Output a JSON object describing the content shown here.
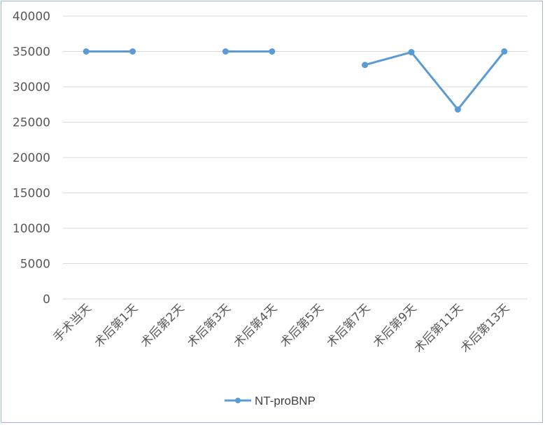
{
  "chart_data": {
    "type": "line",
    "categories": [
      "手术当天",
      "术后第1天",
      "术后第2天",
      "术后第3天",
      "术后第4天",
      "术后第5天",
      "术后第7天",
      "术后第9天",
      "术后第11天",
      "术后第13天"
    ],
    "series": [
      {
        "name": "NT-proBNP",
        "values": [
          35000,
          35000,
          null,
          35000,
          35000,
          null,
          33100,
          34900,
          26800,
          35000
        ],
        "color": "#5b9bd5"
      }
    ],
    "ylim": [
      0,
      40000
    ],
    "yticks": [
      "0",
      "5000",
      "10000",
      "15000",
      "20000",
      "25000",
      "30000",
      "35000",
      "40000"
    ],
    "grid": true,
    "legend": "bottom",
    "title": "",
    "xlabel": "",
    "ylabel": ""
  }
}
